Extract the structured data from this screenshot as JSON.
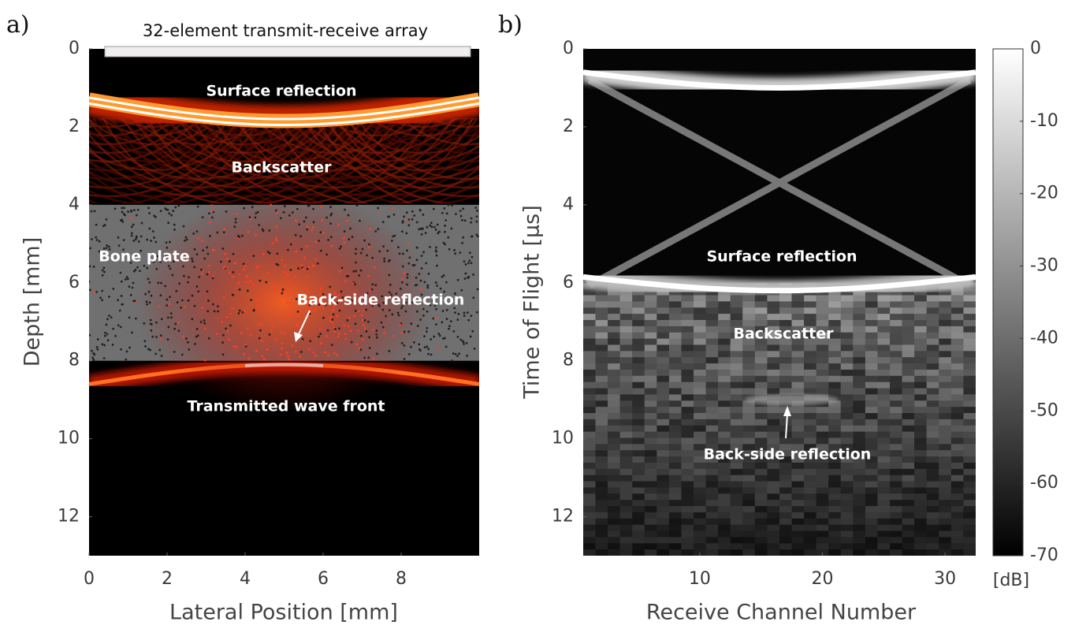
{
  "chart_data": [
    {
      "type": "image",
      "panel_label": "a)",
      "title": "32-element transmit-receive array",
      "x_label": "Lateral Position [mm]",
      "y_label": "Depth [mm]",
      "xlim": [
        0,
        10
      ],
      "ylim": [
        0,
        13
      ],
      "y_reversed": true,
      "xticks": [
        0,
        2,
        4,
        6,
        8
      ],
      "yticks": [
        0,
        2,
        4,
        6,
        8,
        10,
        12
      ],
      "colormap": "hot",
      "bone_plate": [
        4,
        8
      ],
      "annotations": [
        "Surface reflection",
        "Backscatter",
        "Bone plate",
        "Back-side reflection",
        "Transmitted wave front"
      ]
    },
    {
      "type": "image",
      "panel_label": "b)",
      "x_label": "Receive Channel Number",
      "y_label": "Time of Flight [μs]",
      "xlim": [
        0.5,
        32.5
      ],
      "ylim": [
        0,
        13
      ],
      "y_reversed": true,
      "xticks": [
        10,
        20,
        30
      ],
      "yticks": [
        0,
        2,
        4,
        6,
        8,
        10,
        12
      ],
      "colormap": "gray",
      "clim": [
        -70,
        0
      ],
      "cticks": [
        0,
        -10,
        -20,
        -30,
        -40,
        -50,
        -60,
        -70
      ],
      "colorbar_label": "[dB]",
      "annotations": [
        "Surface reflection",
        "Backscatter",
        "Back-side reflection"
      ]
    }
  ]
}
